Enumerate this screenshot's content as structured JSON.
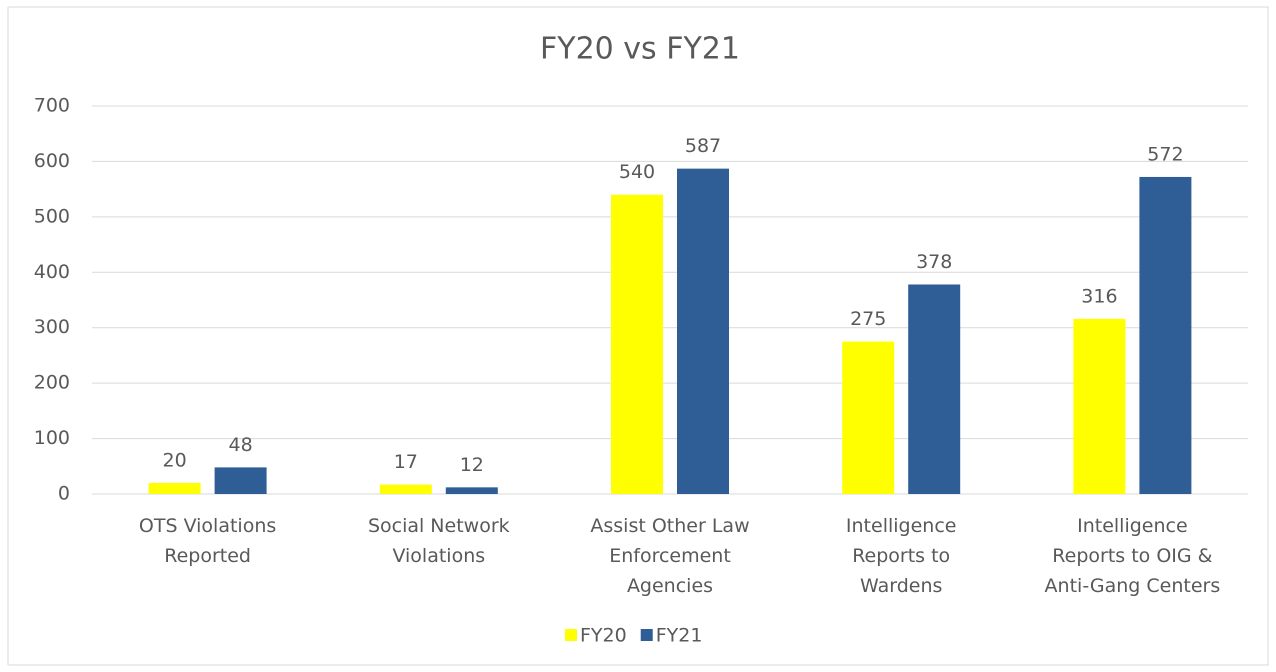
{
  "chart_data": {
    "type": "bar",
    "title": "FY20 vs FY21",
    "categories": [
      "OTS Violations Reported",
      "Social Network Violations",
      "Assist Other Law Enforcement Agencies",
      "Intelligence Reports to Wardens",
      "Intelligence Reports to OIG & Anti-Gang Centers"
    ],
    "series": [
      {
        "name": "FY20",
        "color": "#ffff00",
        "values": [
          20,
          17,
          540,
          275,
          316
        ]
      },
      {
        "name": "FY21",
        "color": "#2e5e95",
        "values": [
          48,
          12,
          587,
          378,
          572
        ]
      }
    ],
    "ylim": [
      0,
      700
    ],
    "yticks": [
      0,
      100,
      200,
      300,
      400,
      500,
      600,
      700
    ],
    "grid": true,
    "legend": "bottom"
  }
}
